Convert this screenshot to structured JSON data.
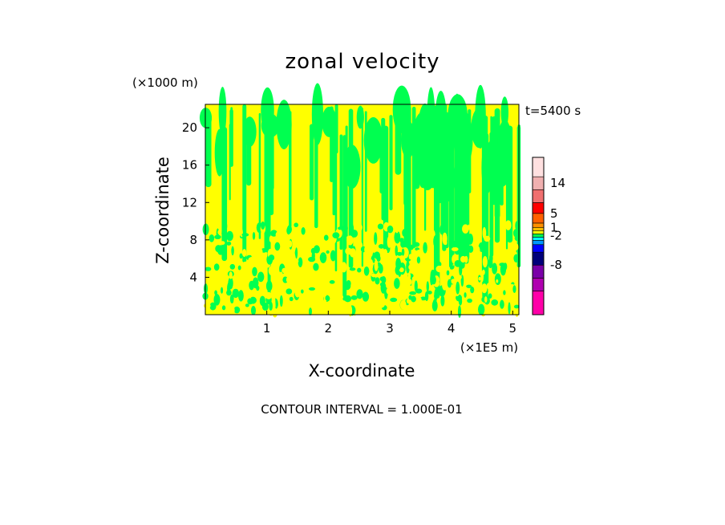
{
  "chart_data": {
    "type": "heatmap",
    "title": "zonal velocity",
    "xlabel": "X-coordinate",
    "ylabel": "Z-coordinate",
    "x_scale_note": "(×1E5 m)",
    "y_scale_note": "(×1000 m)",
    "time_label": "t=5400 s",
    "footer": "CONTOUR INTERVAL = 1.000E-01",
    "xlim": [
      0,
      5.1
    ],
    "ylim": [
      0,
      22.5
    ],
    "x_ticks": [
      1,
      2,
      3,
      4,
      5
    ],
    "y_ticks": [
      4,
      8,
      12,
      16,
      20
    ],
    "colorbar": {
      "levels": [
        {
          "color": "#ff00a8"
        },
        {
          "color": "#b000b0"
        },
        {
          "color": "#7a00a8"
        },
        {
          "color": "#00007a"
        },
        {
          "color": "#0000ff"
        },
        {
          "color": "#0096ff"
        },
        {
          "color": "#00ffff"
        },
        {
          "color": "#00ff50"
        },
        {
          "color": "#ffff00"
        },
        {
          "color": "#ffc000"
        },
        {
          "color": "#ff9000"
        },
        {
          "color": "#ff6000"
        },
        {
          "color": "#ff0000"
        },
        {
          "color": "#f07070"
        },
        {
          "color": "#f0b0b0"
        },
        {
          "color": "#ffe0e0"
        }
      ],
      "labels": [
        {
          "text": "14",
          "level": 14.5
        },
        {
          "text": "5",
          "level": 12.0
        },
        {
          "text": "1",
          "level": 10.0
        },
        {
          "text": "-2",
          "level": 7.5
        },
        {
          "text": "-8",
          "level": 3.0
        }
      ]
    },
    "field_colors": {
      "positive": "#ffff00",
      "negative": "#00ff50"
    }
  }
}
